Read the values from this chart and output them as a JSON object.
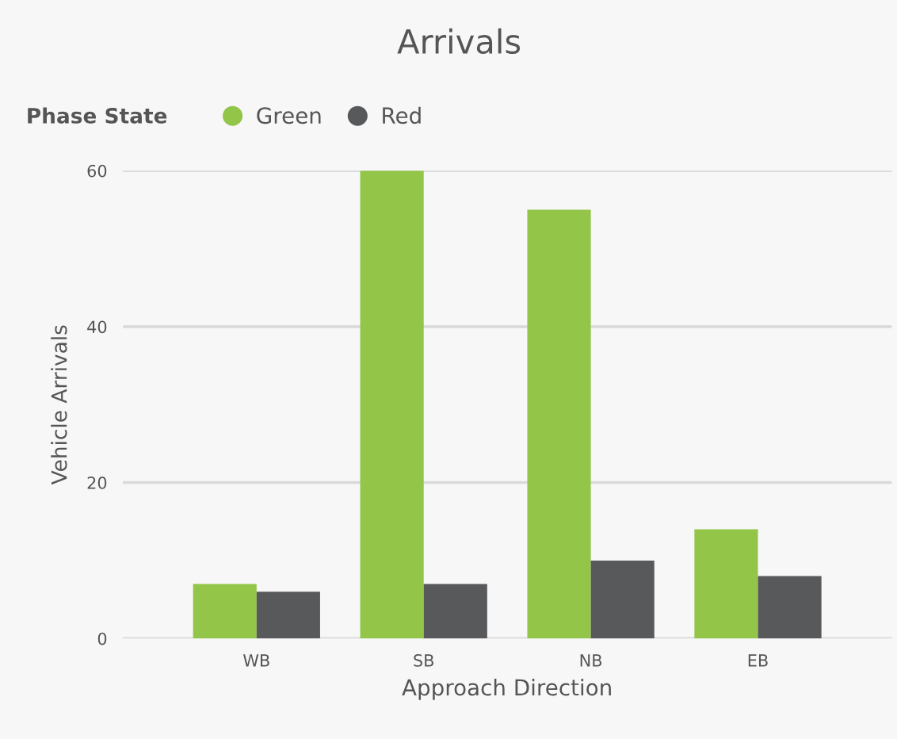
{
  "chart_data": {
    "type": "bar",
    "title": "Arrivals",
    "xlabel": "Approach Direction",
    "ylabel": "Vehicle Arrivals",
    "legend_title": "Phase State",
    "categories": [
      "WB",
      "SB",
      "NB",
      "EB"
    ],
    "series": [
      {
        "name": "Green",
        "color": "#92c548",
        "values": [
          7,
          60,
          55,
          14
        ]
      },
      {
        "name": "Red",
        "color": "#58595b",
        "values": [
          6,
          7,
          10,
          8
        ]
      }
    ],
    "ylim": [
      0,
      60
    ],
    "yticks": [
      0,
      20,
      40,
      60
    ],
    "grid": "y",
    "legend": "top left"
  }
}
